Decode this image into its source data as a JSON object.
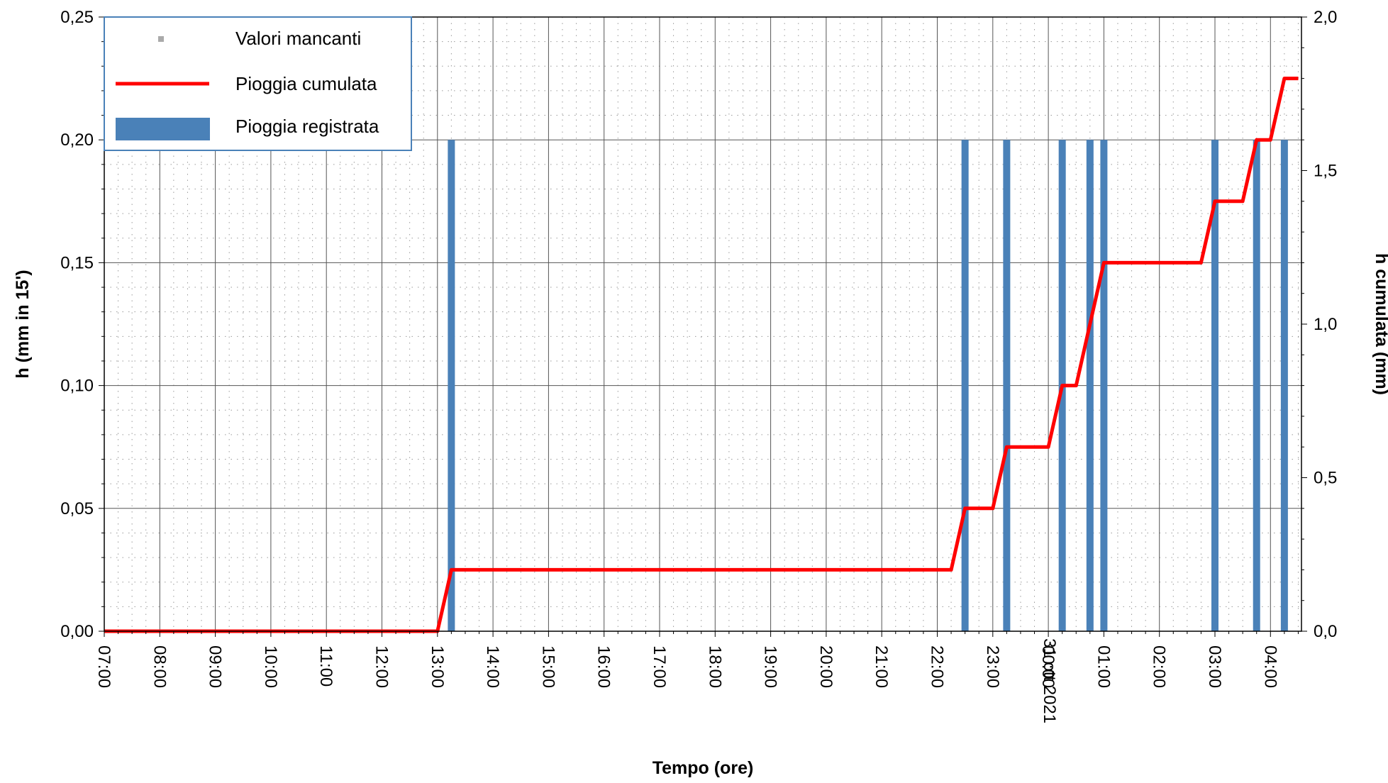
{
  "chart_data": {
    "type": "bar+line",
    "xlabel": "Tempo (ore)",
    "ylabel_left": "h (mm in 15')",
    "ylabel_right": "h cumulata (mm)",
    "date_label": "31 ott 2021",
    "ylim_left": [
      0,
      0.25
    ],
    "ylim_right": [
      0,
      2.0
    ],
    "yticks_left": [
      "0,00",
      "0,05",
      "0,10",
      "0,15",
      "0,20",
      "0,25"
    ],
    "yticks_right": [
      "0,0",
      "0,5",
      "1,0",
      "1,5",
      "2,0"
    ],
    "x_ticks": [
      "07:00",
      "08:00",
      "09:00",
      "10:00",
      "11:00",
      "12:00",
      "13:00",
      "14:00",
      "15:00",
      "16:00",
      "17:00",
      "18:00",
      "19:00",
      "20:00",
      "21:00",
      "22:00",
      "23:00",
      "00:00",
      "01:00",
      "02:00",
      "03:00",
      "04:00"
    ],
    "x_range": [
      "30 ott 2021 07:00",
      "31 ott 2021 04:30"
    ],
    "grid": true,
    "legend_position": "top-left",
    "legend": [
      {
        "label": "Valori mancanti",
        "marker": "square",
        "color": "#aaaaaa"
      },
      {
        "label": "Pioggia cumulata",
        "marker": "line",
        "color": "#ff0000"
      },
      {
        "label": "Pioggia registrata",
        "marker": "bar",
        "color": "#4a81b8"
      }
    ],
    "series": [
      {
        "name": "Pioggia registrata",
        "type": "bar",
        "axis": "left",
        "color": "#4a81b8",
        "x": [
          "13:15",
          "22:30",
          "23:15",
          "00:15",
          "00:45",
          "01:00",
          "03:00",
          "03:45",
          "04:15"
        ],
        "values": [
          0.2,
          0.2,
          0.2,
          0.2,
          0.2,
          0.2,
          0.2,
          0.2,
          0.2
        ]
      },
      {
        "name": "Pioggia cumulata",
        "type": "line",
        "axis": "right",
        "color": "#ff0000",
        "x": [
          "07:00",
          "13:00",
          "13:15",
          "22:15",
          "22:30",
          "23:00",
          "23:15",
          "00:00",
          "00:15",
          "00:30",
          "00:45",
          "01:00",
          "02:45",
          "03:00",
          "03:30",
          "03:45",
          "04:00",
          "04:15",
          "04:30"
        ],
        "values": [
          0.0,
          0.0,
          0.2,
          0.2,
          0.4,
          0.4,
          0.6,
          0.6,
          0.8,
          0.8,
          1.0,
          1.2,
          1.2,
          1.4,
          1.4,
          1.6,
          1.6,
          1.8,
          1.8
        ]
      }
    ]
  }
}
